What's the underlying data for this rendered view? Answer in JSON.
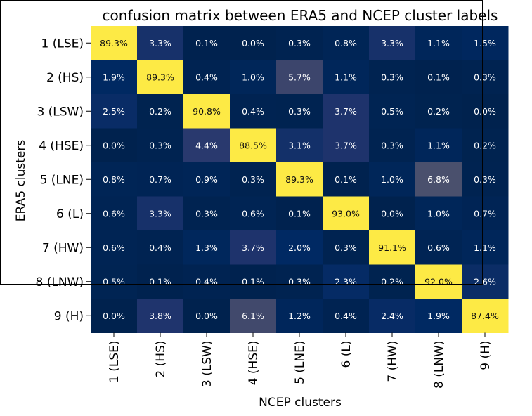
{
  "chart_data": {
    "type": "heatmap",
    "title": "confusion matrix between ERA5 and NCEP cluster labels",
    "xlabel": "NCEP clusters",
    "ylabel": "ERA5 clusters",
    "x_categories": [
      "1 (LSE)",
      "2 (HS)",
      "3 (LSW)",
      "4 (HSE)",
      "5 (LNE)",
      "6 (L)",
      "7 (HW)",
      "8 (LNW)",
      "9 (H)"
    ],
    "y_categories": [
      "1 (LSE)",
      "2 (HS)",
      "3 (LSW)",
      "4 (HSE)",
      "5 (LNE)",
      "6 (L)",
      "7 (HW)",
      "8 (LNW)",
      "9 (H)"
    ],
    "values": [
      [
        89.3,
        3.3,
        0.1,
        0.0,
        0.3,
        0.8,
        3.3,
        1.1,
        1.5
      ],
      [
        1.9,
        89.3,
        0.4,
        1.0,
        5.7,
        1.1,
        0.3,
        0.1,
        0.3
      ],
      [
        2.5,
        0.2,
        90.8,
        0.4,
        0.3,
        3.7,
        0.5,
        0.2,
        0.0
      ],
      [
        0.0,
        0.3,
        4.4,
        88.5,
        3.1,
        3.7,
        0.3,
        1.1,
        0.2
      ],
      [
        0.8,
        0.7,
        0.9,
        0.3,
        89.3,
        0.1,
        1.0,
        6.8,
        0.3
      ],
      [
        0.6,
        3.3,
        0.3,
        0.6,
        0.1,
        93.0,
        0.0,
        1.0,
        0.7
      ],
      [
        0.6,
        0.4,
        1.3,
        3.7,
        2.0,
        0.3,
        91.1,
        0.6,
        1.1
      ],
      [
        0.5,
        0.1,
        0.4,
        0.1,
        0.3,
        2.3,
        0.2,
        92.0,
        2.6
      ],
      [
        0.0,
        3.8,
        0.0,
        6.1,
        1.2,
        0.4,
        2.4,
        1.9,
        87.4
      ]
    ],
    "value_format": "percent_1dp",
    "colormap": "cividis",
    "color_range": [
      0,
      20
    ],
    "colorbar": false
  }
}
